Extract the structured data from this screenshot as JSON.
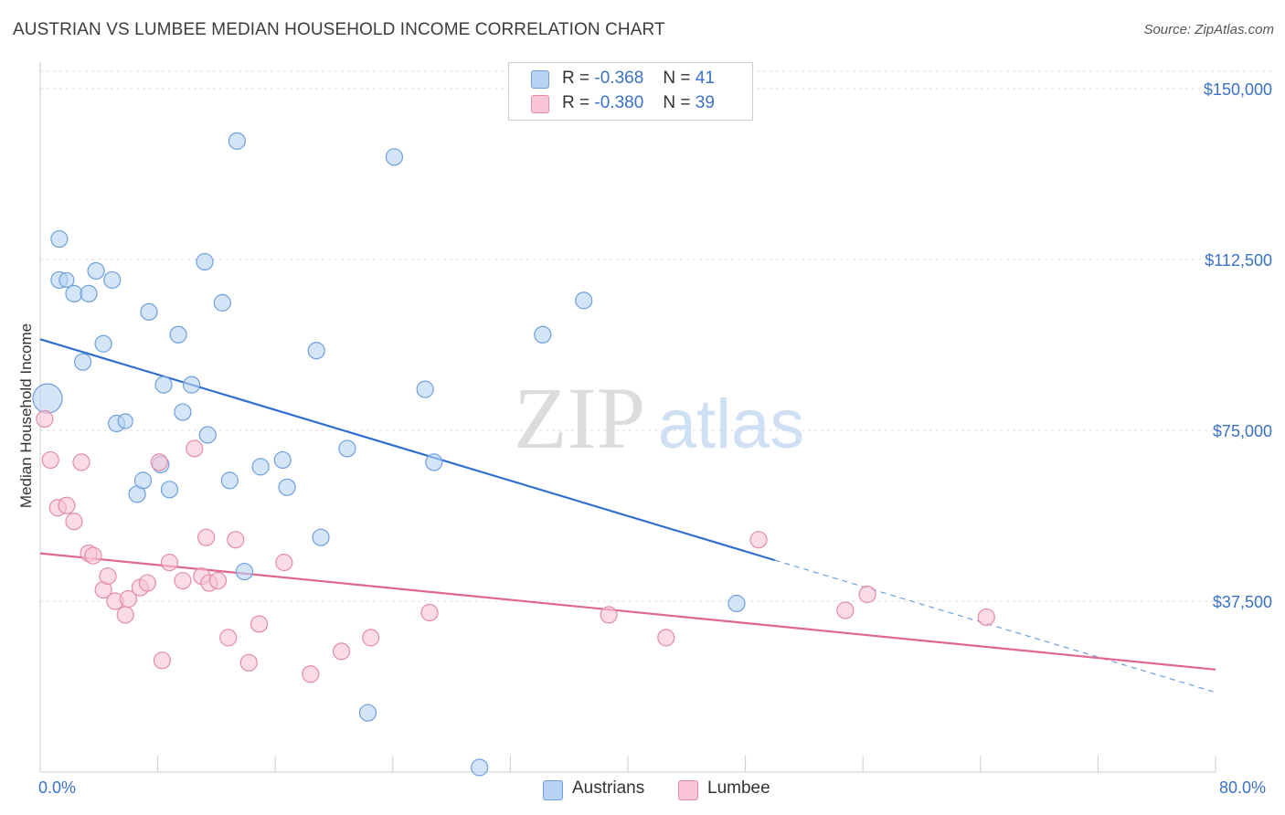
{
  "title": "AUSTRIAN VS LUMBEE MEDIAN HOUSEHOLD INCOME CORRELATION CHART",
  "source": "Source: ZipAtlas.com",
  "watermark": {
    "zip": "ZIP",
    "atlas": "atlas"
  },
  "legend": {
    "r_label": "R =",
    "n_label": "N =",
    "austrians": {
      "r": "-0.368",
      "n": "41",
      "color": "#b8d3f4",
      "border": "#6d9fdc"
    },
    "lumbee": {
      "r": "-0.380",
      "n": "39",
      "color": "#f9c5d5",
      "border": "#e48aa7"
    }
  },
  "bottom_legend": {
    "austrians": "Austrians",
    "lumbee": "Lumbee"
  },
  "x_axis": {
    "min_label": "0.0%",
    "max_label": "80.0%"
  },
  "chart_data": {
    "type": "scatter",
    "title": "AUSTRIAN VS LUMBEE MEDIAN HOUSEHOLD INCOME CORRELATION CHART",
    "xlabel": "",
    "ylabel": "Median Household Income",
    "xlim": [
      0,
      80
    ],
    "ylim": [
      0,
      150000
    ],
    "y_ticks": [
      37500,
      75000,
      112500,
      150000
    ],
    "y_tick_labels": [
      "$37,500",
      "$75,000",
      "$112,500",
      "$150,000"
    ],
    "grid": true,
    "legend_position": "top-center",
    "series": [
      {
        "name": "Austrians",
        "color": "#6d9fdc",
        "fill": "#b8d3f4",
        "trend": {
          "x0": 0,
          "y0": 95000,
          "x1": 50,
          "y1": 46500,
          "dash_to_x": 80,
          "dash_to_y": 17500
        },
        "points": [
          [
            0.5,
            82000,
            16
          ],
          [
            1.3,
            108000,
            9
          ],
          [
            1.8,
            108000,
            8
          ],
          [
            1.3,
            117000,
            9
          ],
          [
            2.3,
            105000,
            9
          ],
          [
            3.3,
            105000,
            9
          ],
          [
            3.8,
            110000,
            9
          ],
          [
            4.9,
            108000,
            9
          ],
          [
            2.9,
            90000,
            9
          ],
          [
            4.3,
            94000,
            9
          ],
          [
            5.2,
            76500,
            9
          ],
          [
            5.8,
            77000,
            8
          ],
          [
            6.6,
            61000,
            9
          ],
          [
            7.0,
            64000,
            9
          ],
          [
            7.4,
            101000,
            9
          ],
          [
            8.4,
            85000,
            9
          ],
          [
            8.2,
            67500,
            9
          ],
          [
            8.8,
            62000,
            9
          ],
          [
            9.4,
            96000,
            9
          ],
          [
            10.3,
            85000,
            9
          ],
          [
            9.7,
            79000,
            9
          ],
          [
            11.2,
            112000,
            9
          ],
          [
            11.4,
            74000,
            9
          ],
          [
            12.4,
            103000,
            9
          ],
          [
            12.9,
            64000,
            9
          ],
          [
            13.4,
            138500,
            9
          ],
          [
            13.9,
            44000,
            9
          ],
          [
            15.0,
            67000,
            9
          ],
          [
            16.5,
            68500,
            9
          ],
          [
            16.8,
            62500,
            9
          ],
          [
            18.8,
            92500,
            9
          ],
          [
            19.1,
            51500,
            9
          ],
          [
            20.9,
            71000,
            9
          ],
          [
            22.3,
            13000,
            9
          ],
          [
            24.1,
            135000,
            9
          ],
          [
            26.2,
            84000,
            9
          ],
          [
            26.8,
            68000,
            9
          ],
          [
            29.9,
            1000,
            9
          ],
          [
            34.2,
            96000,
            9
          ],
          [
            37.0,
            103500,
            9
          ],
          [
            47.4,
            37000,
            9
          ]
        ]
      },
      {
        "name": "Lumbee",
        "color": "#e48aa7",
        "fill": "#f9c5d5",
        "trend": {
          "x0": 0,
          "y0": 48000,
          "x1": 80,
          "y1": 22500
        },
        "points": [
          [
            0.3,
            77500,
            9
          ],
          [
            0.7,
            68500,
            9
          ],
          [
            1.2,
            58000,
            9
          ],
          [
            1.8,
            58500,
            9
          ],
          [
            2.3,
            55000,
            9
          ],
          [
            2.8,
            68000,
            9
          ],
          [
            3.3,
            48000,
            9
          ],
          [
            3.6,
            47500,
            9
          ],
          [
            4.3,
            40000,
            9
          ],
          [
            4.6,
            43000,
            9
          ],
          [
            5.1,
            37500,
            9
          ],
          [
            5.8,
            34500,
            9
          ],
          [
            6.0,
            38000,
            9
          ],
          [
            6.8,
            40500,
            9
          ],
          [
            7.3,
            41500,
            9
          ],
          [
            8.1,
            68000,
            9
          ],
          [
            8.3,
            24500,
            9
          ],
          [
            8.8,
            46000,
            9
          ],
          [
            9.7,
            42000,
            9
          ],
          [
            10.5,
            71000,
            9
          ],
          [
            11.0,
            43000,
            9
          ],
          [
            11.3,
            51500,
            9
          ],
          [
            11.5,
            41500,
            9
          ],
          [
            12.1,
            42000,
            9
          ],
          [
            12.8,
            29500,
            9
          ],
          [
            13.3,
            51000,
            9
          ],
          [
            14.2,
            24000,
            9
          ],
          [
            14.9,
            32500,
            9
          ],
          [
            16.6,
            46000,
            9
          ],
          [
            18.4,
            21500,
            9
          ],
          [
            20.5,
            26500,
            9
          ],
          [
            22.5,
            29500,
            9
          ],
          [
            26.5,
            35000,
            9
          ],
          [
            38.7,
            34500,
            9
          ],
          [
            42.6,
            29500,
            9
          ],
          [
            48.9,
            51000,
            9
          ],
          [
            54.8,
            35500,
            9
          ],
          [
            56.3,
            39000,
            9
          ],
          [
            64.4,
            34000,
            9
          ]
        ]
      }
    ]
  }
}
